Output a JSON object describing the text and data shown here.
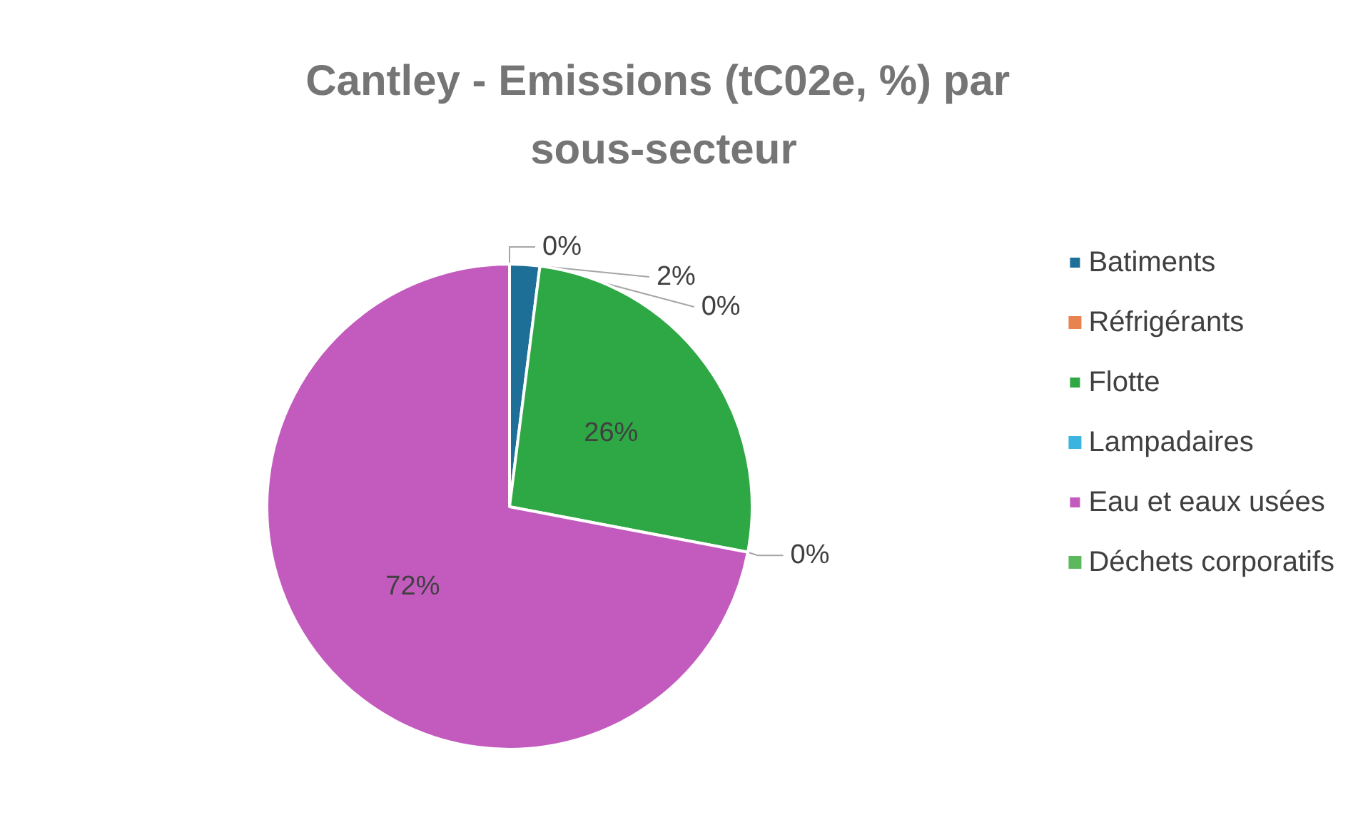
{
  "chart_data": {
    "type": "pie",
    "title": "Cantley - Emissions (tC02e, %) par sous-secteur",
    "categories": [
      "Batiments",
      "Réfrigérants",
      "Flotte",
      "Lampadaires",
      "Eau et eaux usées",
      "Déchets corporatifs"
    ],
    "values": [
      2,
      0,
      26,
      0,
      72,
      0
    ],
    "value_labels": [
      "2%",
      "0%",
      "26%",
      "0%",
      "72%",
      "0%"
    ],
    "colors": [
      "#1d6f98",
      "#e8834f",
      "#2ea844",
      "#3bb5e0",
      "#c35bbf",
      "#5cb85c"
    ],
    "legend": "right"
  }
}
